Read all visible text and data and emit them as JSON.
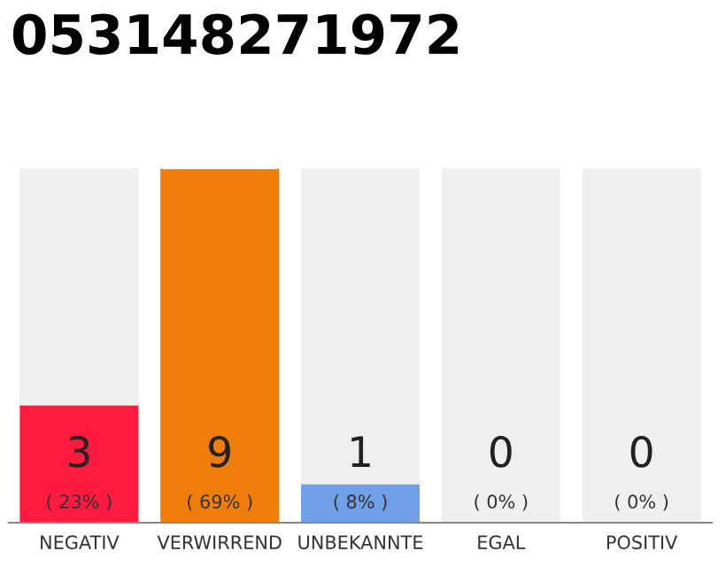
{
  "chart_data": {
    "type": "bar",
    "title": "053148271972",
    "stacked": true,
    "categories": [
      "NEGATIV",
      "VERWIRREND",
      "UNBEKANNTE",
      "EGAL",
      "POSITIV"
    ],
    "series": [
      {
        "values": [
          3,
          9,
          1,
          0,
          0
        ],
        "colors": [
          "#ff1a40",
          "#f07d0a",
          "#6fa0e8",
          "#cccccc",
          "#cccccc"
        ],
        "value_labels": [
          "3\n( 23% )",
          "9\n( 69% )",
          "1\n( 8% )",
          "0\n( 0% )",
          "0\n( 0% )"
        ]
      },
      {
        "values": [
          6,
          0,
          8,
          9,
          9
        ],
        "color": "#efefef"
      }
    ],
    "ylim": [
      0,
      9
    ],
    "tick_labels": "x"
  }
}
